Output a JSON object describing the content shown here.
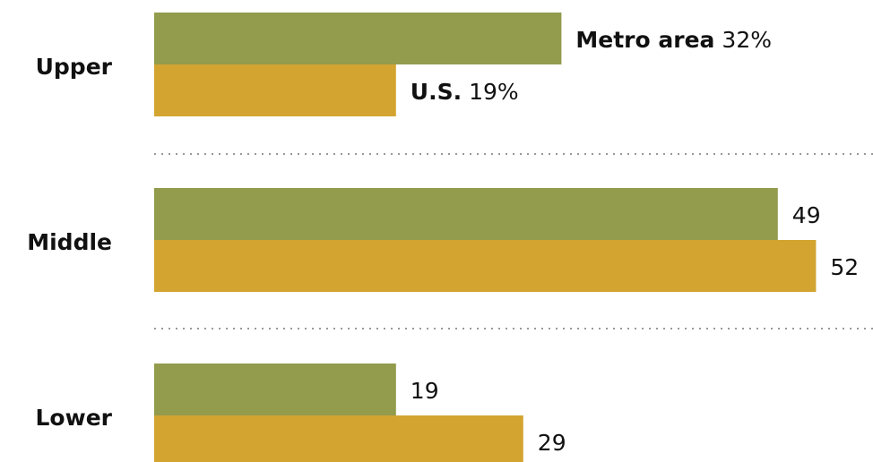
{
  "chart_data": {
    "type": "bar",
    "orientation": "horizontal",
    "categories": [
      "Upper",
      "Middle",
      "Lower"
    ],
    "series": [
      {
        "name": "Metro area",
        "color": "#939b4c",
        "values": [
          32,
          49,
          19
        ],
        "value_labels": [
          "32%",
          "49",
          "19"
        ]
      },
      {
        "name": "U.S.",
        "color": "#d3a530",
        "values": [
          19,
          52,
          29
        ],
        "value_labels": [
          "19%",
          "52",
          "29"
        ]
      }
    ]
  }
}
